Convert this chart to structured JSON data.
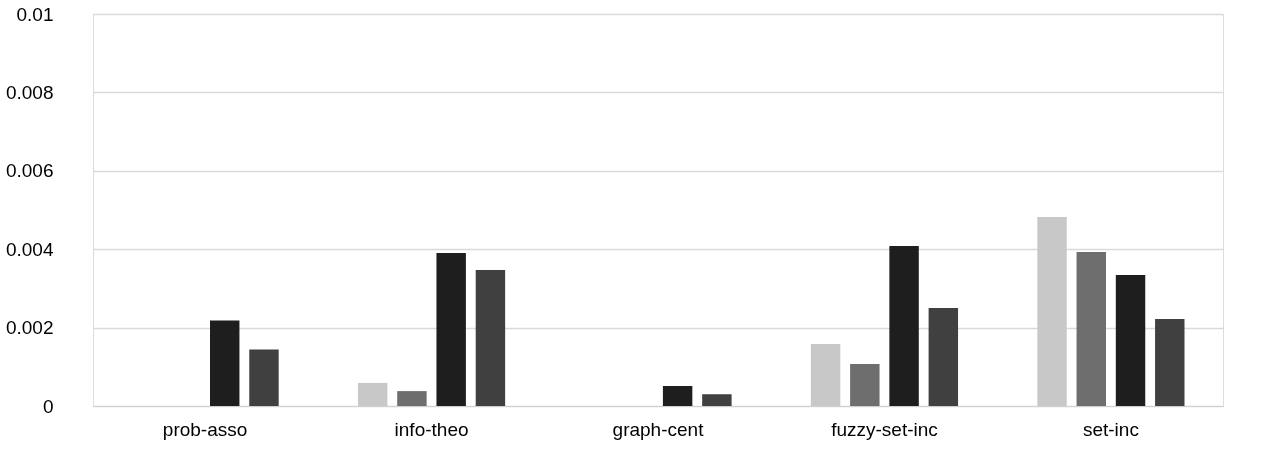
{
  "chart_data": {
    "type": "bar",
    "categories": [
      "prob-asso",
      "info-theo",
      "graph-cent",
      "fuzzy-set-inc",
      "set-inc"
    ],
    "series": [
      {
        "color": "#c8c8c8",
        "values": [
          0,
          0.00059,
          0,
          0.00158,
          0.00482
        ]
      },
      {
        "color": "#6e6e6e",
        "values": [
          0,
          0.00038,
          0,
          0.00107,
          0.00393
        ]
      },
      {
        "color": "#1e1e1e",
        "values": [
          0.00218,
          0.0039,
          0.00051,
          0.00408,
          0.00334
        ]
      },
      {
        "color": "#404040",
        "values": [
          0.00144,
          0.00347,
          0.0003,
          0.0025,
          0.00222
        ]
      }
    ],
    "ylim": [
      0,
      0.01
    ],
    "yticks": [
      0,
      0.002,
      0.004,
      0.006,
      0.008,
      0.01
    ],
    "grid": "y",
    "legend": false
  }
}
